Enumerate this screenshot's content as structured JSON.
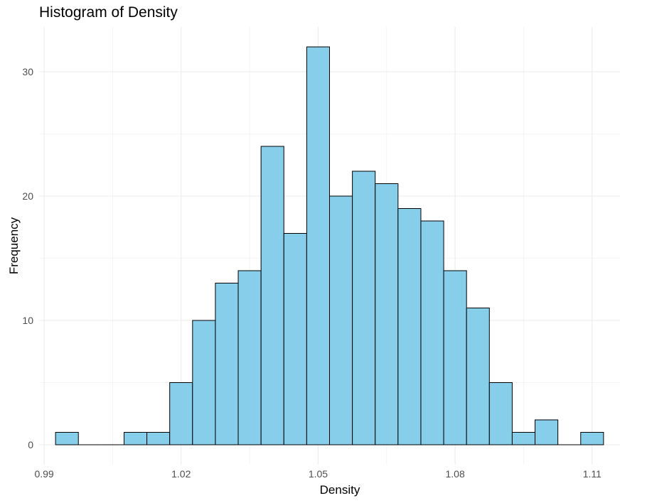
{
  "chart_data": {
    "type": "bar",
    "title": "Histogram of Density",
    "xlabel": "Density",
    "ylabel": "Frequency",
    "bins": [
      {
        "start": 0.9925,
        "end": 0.9975,
        "count": 1
      },
      {
        "start": 0.9975,
        "end": 1.0025,
        "count": 0
      },
      {
        "start": 1.0025,
        "end": 1.0075,
        "count": 0
      },
      {
        "start": 1.0075,
        "end": 1.0125,
        "count": 1
      },
      {
        "start": 1.0125,
        "end": 1.0175,
        "count": 1
      },
      {
        "start": 1.0175,
        "end": 1.0225,
        "count": 5
      },
      {
        "start": 1.0225,
        "end": 1.0275,
        "count": 10
      },
      {
        "start": 1.0275,
        "end": 1.0325,
        "count": 13
      },
      {
        "start": 1.0325,
        "end": 1.0375,
        "count": 14
      },
      {
        "start": 1.0375,
        "end": 1.0425,
        "count": 24
      },
      {
        "start": 1.0425,
        "end": 1.0475,
        "count": 17
      },
      {
        "start": 1.0475,
        "end": 1.0525,
        "count": 32
      },
      {
        "start": 1.0525,
        "end": 1.0575,
        "count": 20
      },
      {
        "start": 1.0575,
        "end": 1.0625,
        "count": 22
      },
      {
        "start": 1.0625,
        "end": 1.0675,
        "count": 21
      },
      {
        "start": 1.0675,
        "end": 1.0725,
        "count": 19
      },
      {
        "start": 1.0725,
        "end": 1.0775,
        "count": 18
      },
      {
        "start": 1.0775,
        "end": 1.0825,
        "count": 14
      },
      {
        "start": 1.0825,
        "end": 1.0875,
        "count": 11
      },
      {
        "start": 1.0875,
        "end": 1.0925,
        "count": 5
      },
      {
        "start": 1.0925,
        "end": 1.0975,
        "count": 1
      },
      {
        "start": 1.0975,
        "end": 1.1025,
        "count": 2
      },
      {
        "start": 1.1025,
        "end": 1.1075,
        "count": 0
      },
      {
        "start": 1.1075,
        "end": 1.1125,
        "count": 1
      }
    ],
    "xticks": [
      0.99,
      1.02,
      1.05,
      1.08,
      1.11
    ],
    "xtick_labels": [
      "0.99",
      "1.02",
      "1.05",
      "1.08",
      "1.11"
    ],
    "yticks": [
      0,
      10,
      20,
      30
    ],
    "ytick_labels": [
      "0",
      "10",
      "20",
      "30"
    ],
    "xlim": [
      0.9889,
      1.1161
    ],
    "ylim": [
      -1.6,
      33.6
    ],
    "grid": true,
    "colors": {
      "bar_fill": "#87CEEB",
      "bar_stroke": "#000000",
      "grid_major": "#EBEBEB",
      "grid_minor": "#F2F2F2",
      "tick_text": "#4D4D4D",
      "axis_title": "#000000"
    }
  }
}
